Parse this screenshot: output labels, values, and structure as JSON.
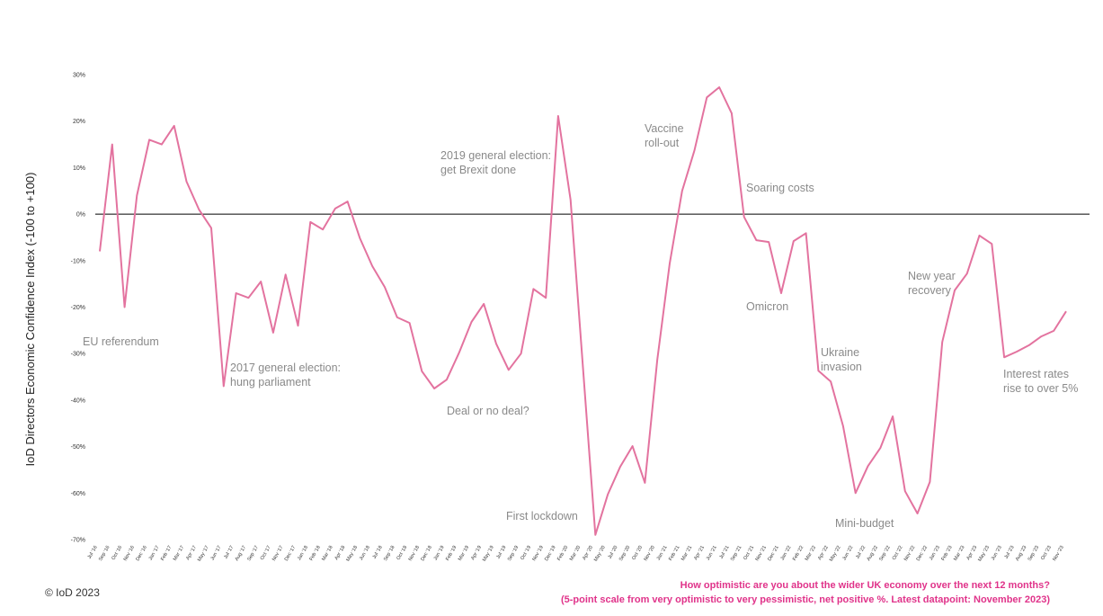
{
  "chart_data": {
    "type": "line",
    "y_label": "IoD Directors Economic Confidence Index (-100 to +100)",
    "copyright": "© IoD 2023",
    "footnote": [
      "How optimistic are you about the wider UK economy over the next 12 months?",
      "(5-point scale from very optimistic to very pessimistic, net positive %. Latest datapoint: November 2023)"
    ],
    "annotations": [
      [
        "EU referendum"
      ],
      [
        "2017 general election:",
        "hung parliament"
      ],
      [
        "Deal or no deal?"
      ],
      [
        "2019 general election:",
        "get Brexit done"
      ],
      [
        "First lockdown"
      ],
      [
        "Vaccine",
        "roll-out"
      ],
      [
        "Soaring costs"
      ],
      [
        "Omicron"
      ],
      [
        "Ukraine",
        "invasion"
      ],
      [
        "Mini-budget"
      ],
      [
        "New year",
        "recovery"
      ],
      [
        "Interest rates",
        "rise to over 5%"
      ]
    ],
    "categories": [
      "Jul '16",
      "Sep '16",
      "Oct '16",
      "Nov '16",
      "Dec '16",
      "Jan '17",
      "Feb '17",
      "Mar '17",
      "Apr '17",
      "May '17",
      "Jun '17",
      "Jul '17",
      "Aug '17",
      "Sep '17",
      "Oct '17",
      "Nov '17",
      "Dec '17",
      "Jan '18",
      "Feb '18",
      "Mar '18",
      "Apr '18",
      "May '18",
      "Jun '18",
      "Jul '18",
      "Sep '18",
      "Oct '18",
      "Nov '18",
      "Dec '18",
      "Jan '19",
      "Feb '19",
      "Mar '19",
      "Apr '19",
      "May '19",
      "Jul '19",
      "Sep '19",
      "Oct '19",
      "Nov '19",
      "Dec '19",
      "Feb '20",
      "Mar '20",
      "Apr '20",
      "May '20",
      "Jul '20",
      "Sep '20",
      "Oct '20",
      "Nov '20",
      "Jan '21",
      "Feb '21",
      "Mar '21",
      "Apr '21",
      "Jun '21",
      "Jul '21",
      "Sep '21",
      "Oct '21",
      "Nov '21",
      "Dec '21",
      "Jan '22",
      "Feb '22",
      "Mar '22",
      "Apr '22",
      "May '22",
      "Jun '22",
      "Jul '22",
      "Aug '22",
      "Sep '22",
      "Oct '22",
      "Nov '22",
      "Dec '22",
      "Jan '23",
      "Feb '23",
      "Mar '23",
      "Apr '23",
      "May '23",
      "Jun '23",
      "Jul '23",
      "Aug '23",
      "Sep '23",
      "Oct '23",
      "Nov '23"
    ],
    "series": [
      {
        "name": "Economic Confidence Index",
        "color": "#e3739f",
        "values": [
          -8,
          15,
          -20,
          4,
          16,
          15,
          19,
          7,
          1,
          -3,
          -37,
          -17,
          -18,
          -14.5,
          -25.5,
          -13,
          -24,
          -1.7,
          -3.3,
          1.2,
          2.7,
          -5.2,
          -11.2,
          -15.7,
          -22.2,
          -23.4,
          -33.8,
          -37.5,
          -35.6,
          -29.8,
          -23.2,
          -19.3,
          -27.9,
          -33.5,
          -30,
          -16.1,
          -18,
          21.1,
          3.1,
          -33,
          -69,
          -60.3,
          -54.4,
          -49.9,
          -57.8,
          -31.3,
          -10.6,
          5,
          13.7,
          25.1,
          27.3,
          21.7,
          -0.6,
          -5.6,
          -6,
          -17,
          -5.8,
          -4.1,
          -33.7,
          -36,
          -45.6,
          -60,
          -54.2,
          -50.3,
          -43.5,
          -59.6,
          -64.4,
          -57.6,
          -27.5,
          -16.4,
          -12.8,
          -4.6,
          -6.4,
          -30.8,
          -29.6,
          -28.2,
          -26.3,
          -25.1,
          -20.9
        ]
      }
    ],
    "ylim": [
      -70,
      30
    ],
    "yticks": [
      {
        "value": -70,
        "label": "-70%"
      },
      {
        "value": -60,
        "label": "-60%"
      },
      {
        "value": -50,
        "label": "-50%"
      },
      {
        "value": -40,
        "label": "-40%"
      },
      {
        "value": -30,
        "label": "-30%"
      },
      {
        "value": -20,
        "label": "-20%"
      },
      {
        "value": -10,
        "label": "-10%"
      },
      {
        "value": 0,
        "label": "0%"
      },
      {
        "value": 10,
        "label": "10%"
      },
      {
        "value": 20,
        "label": "20%"
      },
      {
        "value": 30,
        "label": "30%"
      }
    ],
    "grid": false
  }
}
